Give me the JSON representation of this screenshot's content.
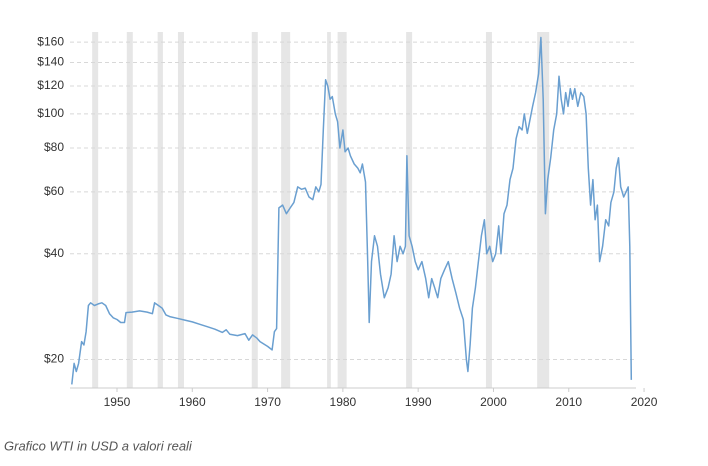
{
  "chart_data": {
    "type": "line",
    "log_scale": true,
    "grid": true,
    "color": "#6a9fd0",
    "band_color": "#e6e6e6",
    "xlim": [
      1943.76,
      2018.93
    ],
    "xticks": [
      1950,
      1960,
      1970,
      1980,
      1990,
      2000,
      2010,
      2020
    ],
    "ylim": [
      16.6,
      171
    ],
    "yticks": [
      {
        "value": 20,
        "label": "$20"
      },
      {
        "value": 40,
        "label": "$40"
      },
      {
        "value": 60,
        "label": "$60"
      },
      {
        "value": 80,
        "label": "$80"
      },
      {
        "value": 100,
        "label": "$100"
      },
      {
        "value": 120,
        "label": "$120"
      },
      {
        "value": 140,
        "label": "$140"
      },
      {
        "value": 160,
        "label": "$160"
      }
    ],
    "recessions": [
      [
        1946.7,
        1947.5
      ],
      [
        1951.3,
        1952.1
      ],
      [
        1955.4,
        1956.1
      ],
      [
        1958.1,
        1958.9
      ],
      [
        1967.9,
        1968.7
      ],
      [
        1971.8,
        1973.0
      ],
      [
        1977.9,
        1978.4
      ],
      [
        1979.3,
        1980.5
      ],
      [
        1988.4,
        1989.2
      ],
      [
        1999.0,
        1999.8
      ],
      [
        2005.8,
        2007.4
      ]
    ],
    "x": [
      1944.0,
      1944.3,
      1944.6,
      1944.9,
      1945.3,
      1945.6,
      1945.9,
      1946.2,
      1946.5,
      1947,
      1947.5,
      1948,
      1948.5,
      1949,
      1949.5,
      1950,
      1950.5,
      1951,
      1951.2,
      1952,
      1953,
      1954,
      1954.7,
      1955,
      1955.5,
      1956,
      1956.5,
      1957,
      1958,
      1959,
      1960,
      1961,
      1962,
      1963,
      1964,
      1964.5,
      1965,
      1966,
      1967,
      1967.5,
      1968,
      1968.6,
      1969,
      1970,
      1970.6,
      1970.9,
      1971.2,
      1971.5,
      1972,
      1972.5,
      1973,
      1973.5,
      1974,
      1974.5,
      1975,
      1975.5,
      1976,
      1976.4,
      1976.8,
      1977.1,
      1977.4,
      1977.7,
      1978,
      1978.3,
      1978.6,
      1979,
      1979.3,
      1979.6,
      1980,
      1980.3,
      1980.7,
      1981,
      1981.5,
      1982,
      1982.3,
      1982.6,
      1983,
      1983.3,
      1983.5,
      1983.8,
      1984.2,
      1984.6,
      1985,
      1985.5,
      1986,
      1986.4,
      1986.8,
      1987.2,
      1987.6,
      1988,
      1988.3,
      1988.5,
      1988.8,
      1989.2,
      1989.6,
      1990,
      1990.5,
      1991,
      1991.4,
      1991.8,
      1992.2,
      1992.6,
      1993,
      1993.5,
      1994,
      1994.5,
      1995,
      1995.5,
      1996,
      1996.4,
      1996.6,
      1996.9,
      1997.2,
      1997.6,
      1998,
      1998.4,
      1998.8,
      1999.1,
      1999.5,
      1999.9,
      2000.3,
      2000.7,
      2001,
      2001.4,
      2001.8,
      2002.2,
      2002.6,
      2003,
      2003.4,
      2003.8,
      2004.1,
      2004.5,
      2004.8,
      2005.2,
      2005.6,
      2006,
      2006.3,
      2006.6,
      2006.9,
      2007.2,
      2007.6,
      2008,
      2008.4,
      2008.7,
      2009,
      2009.3,
      2009.6,
      2009.9,
      2010.2,
      2010.5,
      2010.8,
      2011.2,
      2011.6,
      2012,
      2012.3,
      2012.6,
      2012.9,
      2013.2,
      2013.5,
      2013.8,
      2014.1,
      2014.5,
      2014.9,
      2015.3,
      2015.6,
      2016,
      2016.3,
      2016.6,
      2016.9,
      2017.3,
      2017.6,
      2017.9,
      2018.1,
      2018.3
    ],
    "values": [
      17,
      19.5,
      18.5,
      19.5,
      22.5,
      22,
      24,
      28.5,
      29,
      28.5,
      28.8,
      29,
      28.5,
      27,
      26.3,
      26,
      25.5,
      25.5,
      27.2,
      27.3,
      27.5,
      27.3,
      27,
      29,
      28.5,
      28,
      26.8,
      26.5,
      26.2,
      25.9,
      25.6,
      25.2,
      24.8,
      24.4,
      23.9,
      24.3,
      23.6,
      23.4,
      23.7,
      22.7,
      23.5,
      23,
      22.5,
      21.8,
      21.3,
      24,
      24.5,
      54,
      55,
      52,
      54,
      56,
      62,
      61,
      61.5,
      58,
      57,
      62,
      60,
      63,
      90,
      125,
      120,
      110,
      112,
      100,
      95,
      80,
      90,
      78,
      80,
      76,
      72,
      70,
      68,
      72,
      64,
      38,
      25.5,
      38,
      45,
      42,
      35,
      30,
      32,
      35,
      45,
      38,
      42,
      40,
      42,
      76,
      45,
      42,
      38,
      36,
      38,
      34,
      30,
      34,
      32,
      30,
      34,
      36,
      38,
      34,
      31,
      28,
      26,
      20,
      18.5,
      22,
      28,
      32,
      38,
      45,
      50,
      40,
      42,
      38,
      40,
      48,
      40,
      52,
      55,
      65,
      70,
      85,
      92,
      90,
      100,
      88,
      95,
      105,
      115,
      130,
      165,
      110,
      52,
      65,
      75,
      90,
      100,
      128,
      110,
      100,
      115,
      105,
      118,
      110,
      118,
      105,
      115,
      112,
      100,
      70,
      55,
      65,
      50,
      55,
      38,
      42,
      50,
      48,
      56,
      60,
      70,
      75,
      62,
      58,
      60,
      62,
      42,
      17.5
    ]
  },
  "caption": "Grafico WTI in USD a valori reali"
}
